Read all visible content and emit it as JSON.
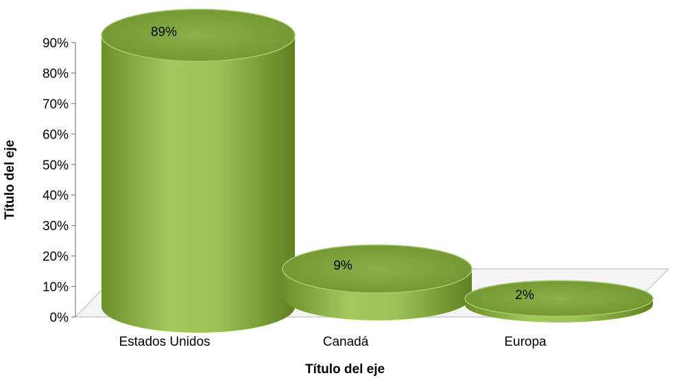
{
  "chart_data": {
    "type": "bar",
    "style": "3d-cylinder",
    "categories": [
      "Estados Unidos",
      "Canadá",
      "Europa"
    ],
    "values": [
      89,
      9,
      2
    ],
    "data_labels": [
      "89%",
      "9%",
      "2%"
    ],
    "xlabel": "Título del eje",
    "ylabel": "Título del eje",
    "ylim": [
      0,
      90
    ],
    "yticks": [
      "0%",
      "10%",
      "20%",
      "30%",
      "40%",
      "50%",
      "60%",
      "70%",
      "80%",
      "90%"
    ],
    "grid": false,
    "legend": "none",
    "bar_color": "#8fb34a",
    "bar_top_color": "#7ea63c"
  }
}
